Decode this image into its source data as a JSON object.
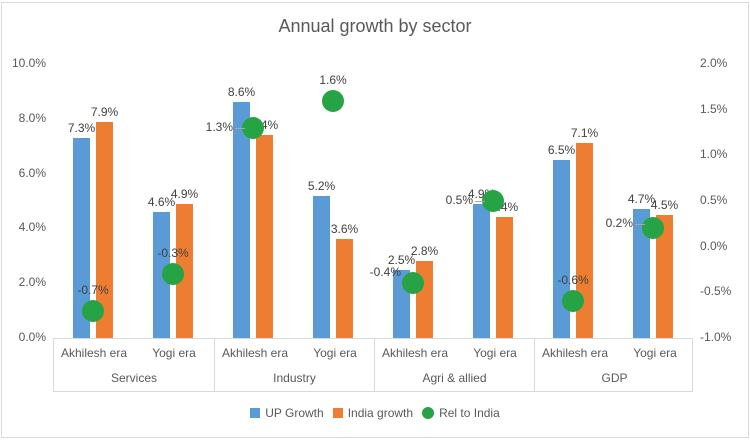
{
  "title": "Annual growth by sector",
  "colors": {
    "up_growth": "#5B9BD5",
    "india_growth": "#ED7D31",
    "rel_to_india": "#26A344",
    "title_text": "#595959",
    "axis_text": "#595959",
    "data_label_text": "#404040",
    "frame_border": "#D9D9D9",
    "leader_line": "#A6A6A6"
  },
  "chart_data": {
    "type": "bar",
    "title": "Annual growth by sector",
    "groups": [
      "Services",
      "Industry",
      "Agri & allied",
      "GDP"
    ],
    "subcategories": [
      "Akhilesh era",
      "Yogi era"
    ],
    "axes": {
      "left": {
        "min": 0,
        "max": 10,
        "step": 2,
        "tick_labels": [
          "10.0%",
          "8.0%",
          "6.0%",
          "4.0%",
          "2.0%",
          "0.0%"
        ]
      },
      "right": {
        "min": -1,
        "max": 2,
        "step": 0.5,
        "tick_labels": [
          "2.0%",
          "1.5%",
          "1.0%",
          "0.5%",
          "0.0%",
          "-0.5%",
          "-1.0%"
        ]
      }
    },
    "series": [
      {
        "name": "UP Growth",
        "type": "bar",
        "axis": "left",
        "color": "#5B9BD5",
        "values": [
          7.3,
          4.6,
          8.6,
          5.2,
          2.5,
          4.9,
          6.5,
          4.7
        ]
      },
      {
        "name": "India growth",
        "type": "bar",
        "axis": "left",
        "color": "#ED7D31",
        "values": [
          7.9,
          4.9,
          7.4,
          3.6,
          2.8,
          4.4,
          7.1,
          4.5
        ]
      },
      {
        "name": "Rel to India",
        "type": "scatter",
        "axis": "right",
        "color": "#26A344",
        "values": [
          -0.7,
          -0.3,
          1.3,
          1.6,
          -0.4,
          0.5,
          -0.6,
          0.2
        ],
        "label_placement": [
          "above",
          "above",
          "left-leader",
          "above",
          "left",
          "left-leader",
          "above",
          "left-leader"
        ],
        "label_dy": [
          0,
          0,
          0,
          0,
          -10,
          0,
          0,
          -4
        ]
      }
    ],
    "data_labels": true,
    "value_format": "0.0%",
    "gridlines": false,
    "legend_position": "bottom"
  }
}
